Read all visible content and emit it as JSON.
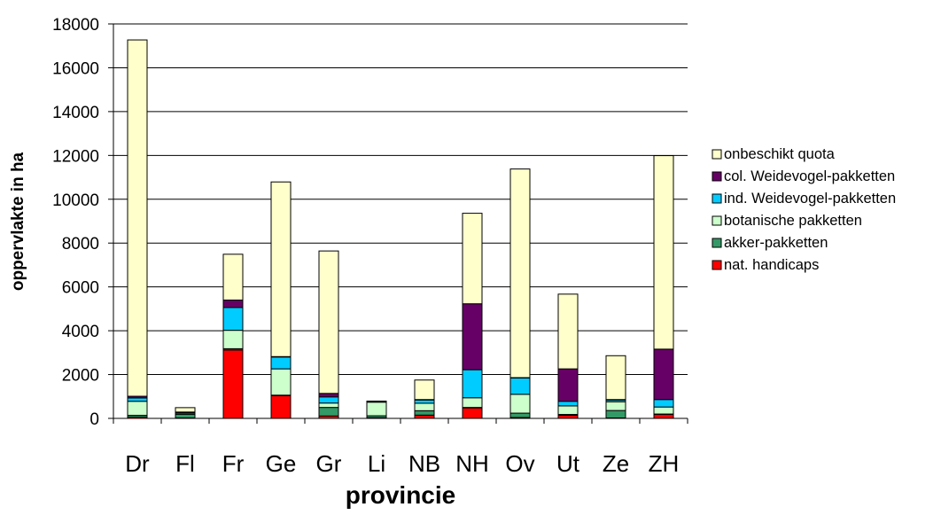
{
  "chart_data": {
    "type": "bar",
    "stacked": true,
    "categories": [
      "Dr",
      "Fl",
      "Fr",
      "Ge",
      "Gr",
      "Li",
      "NB",
      "NH",
      "Ov",
      "Ut",
      "Ze",
      "ZH"
    ],
    "xlabel": "provincie",
    "ylabel": "oppervlakte in ha",
    "ylim": [
      0,
      18000
    ],
    "yticks": [
      0,
      2000,
      4000,
      6000,
      8000,
      10000,
      12000,
      14000,
      16000,
      18000
    ],
    "grid": true,
    "legend_position": "right",
    "series": [
      {
        "name": "nat. handicaps",
        "color": "#ff0000",
        "values": [
          60,
          20,
          3120,
          1040,
          110,
          30,
          150,
          480,
          40,
          140,
          20,
          180
        ]
      },
      {
        "name": "akker-pakketten",
        "color": "#339966",
        "values": [
          80,
          170,
          60,
          20,
          390,
          90,
          200,
          20,
          200,
          40,
          340,
          20
        ]
      },
      {
        "name": "botanische pakketten",
        "color": "#ccffcc",
        "values": [
          640,
          50,
          840,
          1200,
          200,
          620,
          340,
          440,
          860,
          390,
          400,
          320
        ]
      },
      {
        "name": "ind. Weidevogel-pakketten",
        "color": "#00ccff",
        "values": [
          150,
          30,
          1040,
          540,
          280,
          20,
          150,
          1280,
          740,
          210,
          80,
          340
        ]
      },
      {
        "name": "col. Weidevogel-pakketten",
        "color": "#660066",
        "values": [
          80,
          20,
          340,
          20,
          160,
          10,
          20,
          3010,
          20,
          1480,
          20,
          2300
        ]
      },
      {
        "name": "onbeschikt quota",
        "color": "#ffffcc",
        "values": [
          16260,
          200,
          2090,
          7970,
          6500,
          20,
          890,
          4130,
          9520,
          3410,
          2000,
          8830
        ]
      }
    ]
  }
}
